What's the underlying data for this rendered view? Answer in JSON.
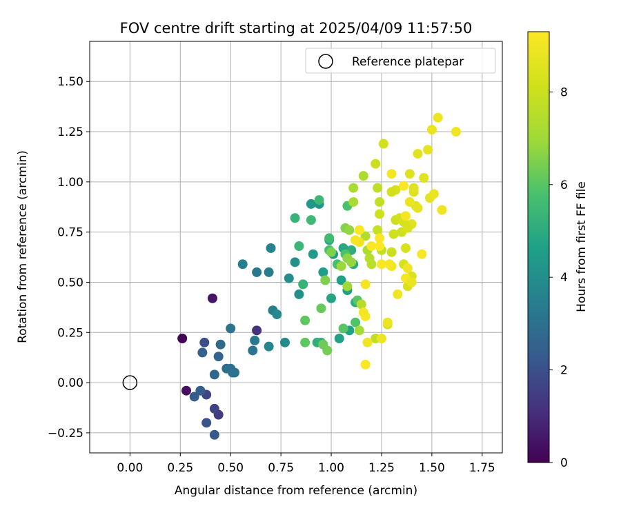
{
  "chart_data": {
    "type": "scatter",
    "title": "FOV centre drift starting at 2025/04/09 11:57:50",
    "xlabel": "Angular distance from reference (arcmin)",
    "ylabel": "Rotation from reference (arcmin)",
    "xlim": [
      -0.2,
      1.85
    ],
    "ylim": [
      -0.35,
      1.7
    ],
    "xticks": [
      0.0,
      0.25,
      0.5,
      0.75,
      1.0,
      1.25,
      1.5,
      1.75
    ],
    "xtick_labels": [
      "0.00",
      "0.25",
      "0.50",
      "0.75",
      "1.00",
      "1.25",
      "1.50",
      "1.75"
    ],
    "yticks": [
      -0.25,
      0.0,
      0.25,
      0.5,
      0.75,
      1.0,
      1.25,
      1.5
    ],
    "ytick_labels": [
      "−0.25",
      "0.00",
      "0.25",
      "0.50",
      "0.75",
      "1.00",
      "1.25",
      "1.50"
    ],
    "grid": true,
    "legend": {
      "placement": "upper-right",
      "entries": [
        {
          "label": "Reference platepar",
          "marker": "open-circle"
        }
      ]
    },
    "reference_point": {
      "x": 0.0,
      "y": 0.0
    },
    "colorbar": {
      "label": "Hours from first FF file",
      "colormap": "viridis",
      "range": [
        0,
        9.3
      ],
      "ticks": [
        0,
        2,
        4,
        6,
        8
      ],
      "tick_labels": [
        "0",
        "2",
        "4",
        "6",
        "8"
      ]
    },
    "columns": [
      "x",
      "y",
      "hours"
    ],
    "points": [
      [
        0.26,
        0.22,
        0.1
      ],
      [
        0.28,
        -0.04,
        0.3
      ],
      [
        0.41,
        0.42,
        0.5
      ],
      [
        0.63,
        0.26,
        1.2
      ],
      [
        0.44,
        -0.16,
        1.4
      ],
      [
        0.42,
        -0.13,
        1.6
      ],
      [
        0.38,
        -0.06,
        1.7
      ],
      [
        0.37,
        0.2,
        1.9
      ],
      [
        0.38,
        -0.2,
        2.1
      ],
      [
        0.42,
        -0.26,
        2.2
      ],
      [
        0.32,
        -0.07,
        2.3
      ],
      [
        0.35,
        -0.04,
        2.4
      ],
      [
        0.36,
        0.15,
        2.5
      ],
      [
        0.44,
        0.13,
        2.6
      ],
      [
        0.42,
        0.04,
        2.7
      ],
      [
        0.45,
        0.19,
        2.8
      ],
      [
        0.48,
        0.07,
        2.9
      ],
      [
        0.5,
        0.07,
        3.0
      ],
      [
        0.51,
        0.05,
        3.0
      ],
      [
        0.52,
        0.05,
        3.1
      ],
      [
        0.5,
        0.27,
        3.1
      ],
      [
        0.61,
        0.16,
        3.2
      ],
      [
        0.62,
        0.21,
        3.3
      ],
      [
        0.63,
        0.55,
        3.3
      ],
      [
        0.69,
        0.55,
        3.4
      ],
      [
        0.56,
        0.59,
        3.5
      ],
      [
        0.71,
        0.36,
        3.5
      ],
      [
        0.7,
        0.67,
        3.6
      ],
      [
        0.69,
        0.18,
        3.7
      ],
      [
        0.73,
        0.34,
        3.8
      ],
      [
        0.77,
        0.2,
        3.9
      ],
      [
        0.79,
        0.52,
        4.0
      ],
      [
        0.82,
        0.6,
        4.1
      ],
      [
        0.84,
        0.44,
        4.1
      ],
      [
        0.94,
        0.89,
        4.2
      ],
      [
        0.9,
        0.89,
        4.3
      ],
      [
        0.91,
        0.64,
        4.4
      ],
      [
        0.96,
        0.55,
        4.5
      ],
      [
        1.01,
        0.64,
        4.5
      ],
      [
        1.05,
        0.51,
        4.6
      ],
      [
        1.08,
        0.46,
        4.6
      ],
      [
        1.09,
        0.26,
        4.7
      ],
      [
        1.04,
        0.22,
        4.7
      ],
      [
        1.0,
        0.42,
        4.8
      ],
      [
        0.99,
        0.71,
        4.9
      ],
      [
        1.06,
        0.67,
        4.9
      ],
      [
        1.11,
        0.59,
        5.0
      ],
      [
        1.12,
        0.4,
        5.0
      ],
      [
        1.1,
        0.66,
        5.1
      ],
      [
        0.93,
        0.2,
        5.1
      ],
      [
        0.95,
        0.2,
        5.2
      ],
      [
        0.82,
        0.82,
        5.3
      ],
      [
        0.86,
        0.49,
        5.3
      ],
      [
        0.84,
        0.68,
        5.4
      ],
      [
        0.9,
        0.81,
        5.5
      ],
      [
        0.94,
        0.91,
        5.5
      ],
      [
        0.99,
        0.72,
        5.6
      ],
      [
        0.99,
        0.66,
        5.7
      ],
      [
        1.03,
        0.59,
        5.7
      ],
      [
        1.07,
        0.64,
        5.8
      ],
      [
        1.08,
        0.88,
        5.8
      ],
      [
        1.12,
        0.3,
        5.9
      ],
      [
        1.13,
        0.41,
        6.0
      ],
      [
        1.06,
        0.27,
        6.0
      ],
      [
        0.87,
        0.2,
        6.1
      ],
      [
        0.87,
        0.31,
        6.1
      ],
      [
        0.95,
        0.37,
        6.2
      ],
      [
        0.96,
        0.19,
        6.3
      ],
      [
        0.98,
        0.16,
        6.4
      ],
      [
        0.97,
        0.51,
        6.5
      ],
      [
        1.0,
        0.65,
        6.5
      ],
      [
        1.07,
        0.77,
        6.6
      ],
      [
        1.08,
        0.62,
        6.7
      ],
      [
        1.09,
        0.76,
        6.8
      ],
      [
        1.1,
        0.6,
        6.8
      ],
      [
        1.05,
        0.58,
        6.9
      ],
      [
        1.08,
        0.48,
        7.0
      ],
      [
        1.14,
        0.26,
        7.1
      ],
      [
        1.11,
        0.97,
        7.2
      ],
      [
        1.11,
        0.9,
        7.2
      ],
      [
        1.16,
        1.03,
        7.3
      ],
      [
        1.18,
        0.66,
        7.3
      ],
      [
        1.17,
        0.73,
        7.4
      ],
      [
        1.15,
        0.39,
        7.5
      ],
      [
        1.19,
        0.62,
        7.5
      ],
      [
        1.2,
        0.59,
        7.6
      ],
      [
        1.22,
        0.22,
        7.7
      ],
      [
        1.23,
        0.97,
        7.7
      ],
      [
        1.25,
        0.66,
        7.8
      ],
      [
        1.24,
        0.9,
        7.8
      ],
      [
        1.23,
        0.76,
        7.9
      ],
      [
        1.3,
        0.65,
        8.0
      ],
      [
        1.32,
        0.81,
        8.0
      ],
      [
        1.31,
        0.74,
        8.1
      ],
      [
        1.35,
        0.75,
        8.1
      ],
      [
        1.28,
        0.29,
        8.2
      ],
      [
        1.34,
        0.82,
        8.2
      ],
      [
        1.36,
        0.59,
        8.3
      ],
      [
        1.37,
        0.67,
        8.3
      ],
      [
        1.38,
        0.48,
        8.4
      ],
      [
        1.4,
        0.53,
        8.4
      ],
      [
        1.42,
        0.88,
        8.5
      ],
      [
        1.41,
        0.95,
        8.5
      ],
      [
        1.43,
        1.14,
        8.6
      ],
      [
        1.46,
        1.02,
        8.6
      ],
      [
        1.48,
        1.16,
        8.7
      ],
      [
        1.49,
        0.92,
        8.7
      ],
      [
        1.5,
        1.26,
        8.8
      ],
      [
        1.51,
        0.94,
        8.8
      ],
      [
        1.53,
        1.32,
        8.9
      ],
      [
        1.55,
        0.86,
        8.9
      ],
      [
        1.62,
        1.25,
        9.0
      ],
      [
        1.4,
        0.79,
        8.5
      ],
      [
        1.38,
        0.77,
        8.4
      ],
      [
        1.36,
        0.8,
        8.3
      ],
      [
        1.41,
        0.97,
        8.6
      ],
      [
        1.43,
        0.87,
        8.7
      ],
      [
        1.39,
        0.9,
        8.8
      ],
      [
        1.39,
        1.04,
        8.5
      ],
      [
        1.32,
        0.96,
        8.3
      ],
      [
        1.3,
        0.95,
        8.2
      ],
      [
        1.24,
        0.84,
        8.1
      ],
      [
        1.26,
        1.19,
        8.2
      ],
      [
        1.22,
        1.09,
        8.0
      ],
      [
        1.28,
        0.3,
        8.9
      ],
      [
        1.3,
        0.58,
        9.0
      ],
      [
        1.33,
        0.44,
        9.0
      ],
      [
        1.37,
        0.52,
        9.1
      ],
      [
        1.37,
        0.83,
        9.1
      ],
      [
        1.36,
        0.98,
        9.2
      ],
      [
        1.3,
        1.04,
        9.1
      ],
      [
        1.29,
        0.59,
        9.1
      ],
      [
        1.24,
        0.72,
        9.2
      ],
      [
        1.25,
        0.59,
        9.2
      ],
      [
        1.24,
        0.68,
        9.3
      ],
      [
        1.2,
        0.68,
        9.3
      ],
      [
        1.17,
        0.33,
        9.2
      ],
      [
        1.17,
        0.49,
        9.1
      ],
      [
        1.18,
        0.2,
        9.0
      ],
      [
        1.17,
        0.09,
        9.2
      ],
      [
        1.16,
        0.35,
        9.1
      ],
      [
        1.14,
        0.7,
        9.0
      ],
      [
        1.14,
        0.76,
        9.2
      ],
      [
        1.12,
        0.71,
        9.1
      ],
      [
        1.25,
        0.22,
        8.9
      ],
      [
        1.38,
        0.57,
        9.0
      ],
      [
        1.4,
        0.5,
        8.8
      ],
      [
        1.45,
        0.64,
        9.2
      ]
    ]
  }
}
